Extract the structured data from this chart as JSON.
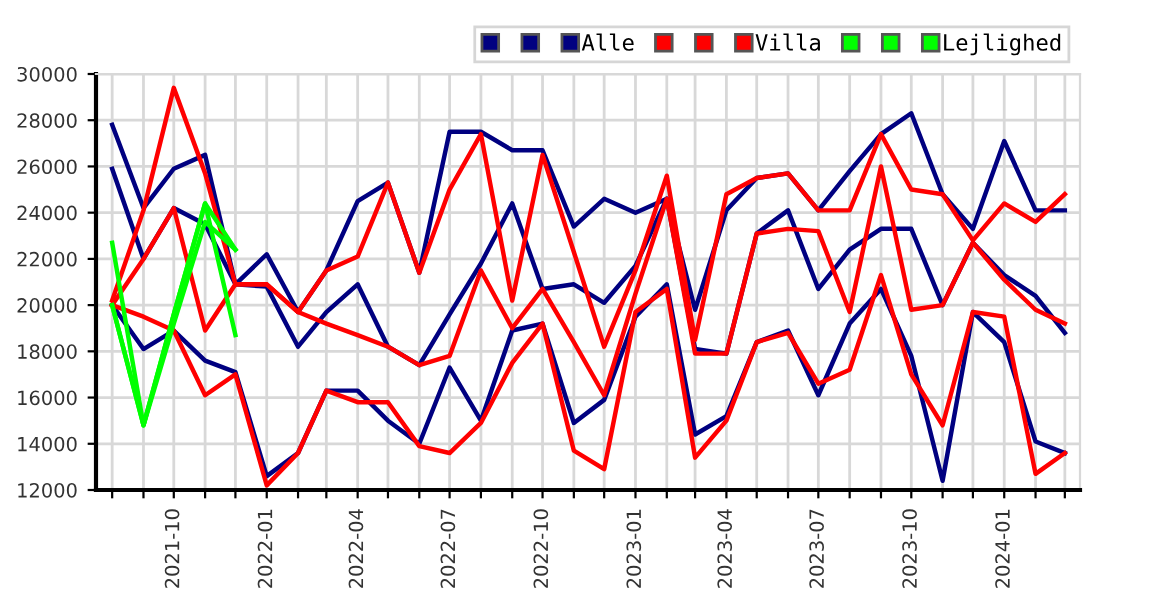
{
  "chart_data": {
    "type": "line",
    "x": [
      "2021-08",
      "2021-09",
      "2021-10",
      "2021-11",
      "2021-12",
      "2022-01",
      "2022-02",
      "2022-03",
      "2022-04",
      "2022-05",
      "2022-06",
      "2022-07",
      "2022-08",
      "2022-09",
      "2022-10",
      "2022-11",
      "2022-12",
      "2023-01",
      "2023-02",
      "2023-03",
      "2023-04",
      "2023-05",
      "2023-06",
      "2023-07",
      "2023-08",
      "2023-09",
      "2023-10",
      "2023-11",
      "2023-12",
      "2024-01",
      "2024-02",
      "2024-03"
    ],
    "series": [
      {
        "color": "#000080",
        "values": [
          27800,
          24200,
          25900,
          26500,
          20900,
          22200,
          19700,
          21500,
          24500,
          25300,
          21400,
          27500,
          27500,
          26700,
          26700,
          23400,
          24600,
          24000,
          24600,
          19800,
          24100,
          25500,
          25700,
          24100,
          25800,
          27400,
          28300,
          24800,
          23300,
          27100,
          24100,
          24100
        ]
      },
      {
        "color": "#000080",
        "values": [
          20000,
          18100,
          18900,
          17600,
          17100,
          12600,
          13600,
          16300,
          16300,
          15000,
          14000,
          17300,
          15000,
          18900,
          19200,
          14900,
          15900,
          19500,
          20900,
          14400,
          15200,
          18400,
          18900,
          16100,
          19200,
          20700,
          17800,
          12400,
          19700,
          18400,
          14100,
          13600
        ]
      },
      {
        "name": "Alle",
        "color": "#000080",
        "values": [
          25900,
          22000,
          24200,
          23500,
          20900,
          20800,
          18200,
          19700,
          20900,
          18200,
          17400,
          19600,
          21800,
          24400,
          20700,
          20900,
          20100,
          21700,
          24600,
          18100,
          17900,
          23100,
          24100,
          20700,
          22400,
          23300,
          23300,
          20000,
          22700,
          21300,
          20400,
          18800
        ]
      },
      {
        "color": "#ff0000",
        "values": [
          20200,
          24100,
          29400,
          25700,
          20900,
          20900,
          19700,
          21500,
          22100,
          25300,
          21400,
          25000,
          27400,
          20200,
          26500,
          22300,
          18200,
          21500,
          25600,
          18500,
          24800,
          25500,
          25700,
          24100,
          24100,
          27400,
          25000,
          24800,
          22800,
          24400,
          23600,
          24800
        ]
      },
      {
        "color": "#ff0000",
        "values": [
          20000,
          19500,
          18900,
          16100,
          17000,
          12200,
          13600,
          16300,
          15800,
          15800,
          13900,
          13600,
          14900,
          17500,
          19200,
          13700,
          12900,
          19700,
          20700,
          13400,
          15000,
          18400,
          18800,
          16600,
          17200,
          21300,
          17000,
          14800,
          19700,
          19500,
          12700,
          13600
        ]
      },
      {
        "name": "Villa",
        "color": "#ff0000",
        "values": [
          20000,
          22000,
          24200,
          18900,
          20900,
          20900,
          19700,
          19200,
          18700,
          18200,
          17400,
          17800,
          21500,
          19000,
          20700,
          18400,
          16100,
          20500,
          24600,
          17900,
          17900,
          23100,
          23300,
          23200,
          19700,
          26000,
          19800,
          20000,
          22700,
          21100,
          19800,
          19200
        ]
      },
      {
        "color": "#00ff00",
        "x": [
          "2021-08",
          "2021-09",
          "2021-10",
          "2021-11",
          "2021-12"
        ],
        "values": [
          22700,
          14800,
          19600,
          24400,
          22400
        ]
      },
      {
        "color": "#00ff00",
        "x": [
          "2021-08",
          "2021-09",
          "2021-10",
          "2021-11",
          "2021-12"
        ],
        "values": [
          20000,
          14800,
          19600,
          24400,
          18700
        ]
      },
      {
        "name": "Lejlighed",
        "color": "#00ff00",
        "x": [
          "2021-08",
          "2021-09",
          "2021-10",
          "2021-11",
          "2021-12"
        ],
        "values": [
          20000,
          14800,
          19200,
          23600,
          22400
        ]
      }
    ],
    "xlim": [
      "2021-07-16",
      "2024-03-16"
    ],
    "xticks": [
      {
        "value": "2021-08",
        "label": null
      },
      {
        "value": "2021-09",
        "label": null
      },
      "2021-10",
      {
        "value": "2021-11",
        "label": null
      },
      {
        "value": "2021-12",
        "label": null
      },
      "2022-01",
      {
        "value": "2022-02",
        "label": null
      },
      {
        "value": "2022-03",
        "label": null
      },
      "2022-04",
      {
        "value": "2022-05",
        "label": null
      },
      {
        "value": "2022-06",
        "label": null
      },
      "2022-07",
      {
        "value": "2022-08",
        "label": null
      },
      {
        "value": "2022-09",
        "label": null
      },
      "2022-10",
      {
        "value": "2022-11",
        "label": null
      },
      {
        "value": "2022-12",
        "label": null
      },
      "2023-01",
      {
        "value": "2023-02",
        "label": null
      },
      {
        "value": "2023-03",
        "label": null
      },
      "2023-04",
      {
        "value": "2023-05",
        "label": null
      },
      {
        "value": "2023-06",
        "label": null
      },
      "2023-07",
      {
        "value": "2023-08",
        "label": null
      },
      {
        "value": "2023-09",
        "label": null
      },
      "2023-10",
      {
        "value": "2023-11",
        "label": null
      },
      {
        "value": "2023-12",
        "label": null
      },
      "2024-01",
      {
        "value": "2024-02",
        "label": null
      },
      {
        "value": "2024-03",
        "label": null
      }
    ],
    "ylim": [
      12000,
      30000
    ],
    "yticks": [
      12000,
      14000,
      16000,
      18000,
      20000,
      22000,
      24000,
      26000,
      28000,
      30000
    ],
    "grid": true,
    "legend": "top right",
    "marker": "none",
    "line_style": "solid"
  }
}
